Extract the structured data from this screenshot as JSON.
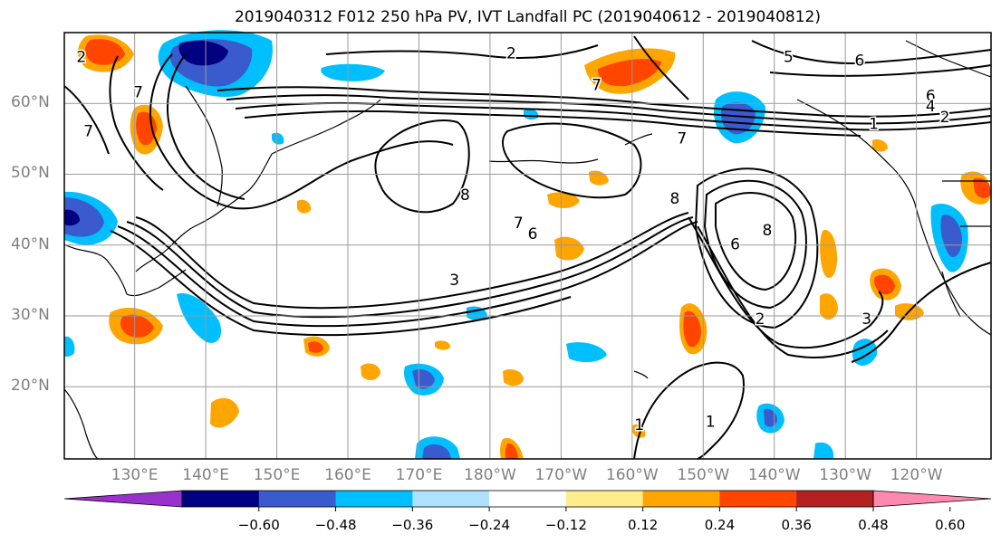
{
  "title": "2019040312 F012 250 hPa PV, IVT Landfall PC (2019040612 - 2019040812)",
  "lat_labels": [
    {
      "text": "60°N",
      "lat": 60
    },
    {
      "text": "50°N",
      "lat": 50
    },
    {
      "text": "40°N",
      "lat": 40
    },
    {
      "text": "30°N",
      "lat": 30
    },
    {
      "text": "20°N",
      "lat": 20
    }
  ],
  "lon_labels": [
    {
      "text": "130°E",
      "lon": 130
    },
    {
      "text": "140°E",
      "lon": 140
    },
    {
      "text": "150°E",
      "lon": 150
    },
    {
      "text": "160°E",
      "lon": 160
    },
    {
      "text": "170°E",
      "lon": 170
    },
    {
      "text": "180°W",
      "lon": 180
    },
    {
      "text": "170°W",
      "lon": 190
    },
    {
      "text": "160°W",
      "lon": 200
    },
    {
      "text": "150°W",
      "lon": 210
    },
    {
      "text": "140°W",
      "lon": 220
    },
    {
      "text": "130°W",
      "lon": 230
    },
    {
      "text": "120°W",
      "lon": 240
    }
  ],
  "colorbar": {
    "colors": [
      "#9932cc",
      "#000080",
      "#3a5bcd",
      "#00bfff",
      "#b0e2ff",
      "#ffffff",
      "#ffec8b",
      "#ffa500",
      "#ff4500",
      "#b22222",
      "#ff88b0"
    ],
    "tick_labels": [
      "−0.60",
      "−0.48",
      "−0.36",
      "−0.24",
      "−0.12",
      "0.12",
      "0.24",
      "0.36",
      "0.48",
      "0.60"
    ]
  },
  "contour_labels": [
    {
      "text": "7",
      "lon": 130.5,
      "lat": 61.5
    },
    {
      "text": "7",
      "lon": 195,
      "lat": 62.5
    },
    {
      "text": "5",
      "lon": 222,
      "lat": 66.5
    },
    {
      "text": "6",
      "lon": 232,
      "lat": 66
    },
    {
      "text": "6",
      "lon": 242,
      "lat": 61
    },
    {
      "text": "4",
      "lon": 242,
      "lat": 59.5
    },
    {
      "text": "2",
      "lon": 244,
      "lat": 58
    },
    {
      "text": "1",
      "lon": 234,
      "lat": 57
    },
    {
      "text": "8",
      "lon": 176.5,
      "lat": 47
    },
    {
      "text": "8",
      "lon": 206,
      "lat": 46.5
    },
    {
      "text": "8",
      "lon": 219,
      "lat": 42
    },
    {
      "text": "6",
      "lon": 214.5,
      "lat": 40
    },
    {
      "text": "7",
      "lon": 184,
      "lat": 43
    },
    {
      "text": "6",
      "lon": 186,
      "lat": 41.5
    },
    {
      "text": "3",
      "lon": 175,
      "lat": 35
    },
    {
      "text": "7",
      "lon": 207,
      "lat": 55
    },
    {
      "text": "2",
      "lon": 218,
      "lat": 29.5
    },
    {
      "text": "3",
      "lon": 233,
      "lat": 29.5
    },
    {
      "text": "1",
      "lon": 201,
      "lat": 14.5
    },
    {
      "text": "1",
      "lon": 211,
      "lat": 15
    },
    {
      "text": "2",
      "lon": 122.5,
      "lat": 66.5
    },
    {
      "text": "7",
      "lon": 123.5,
      "lat": 56
    },
    {
      "text": "2",
      "lon": 183,
      "lat": 67
    }
  ]
}
